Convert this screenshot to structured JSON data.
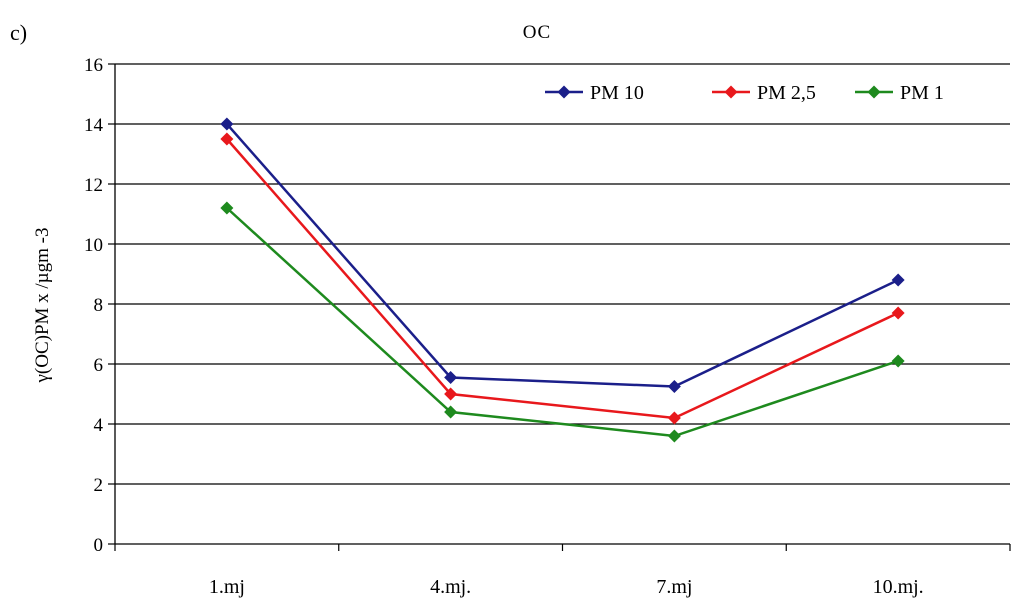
{
  "panel_label": "c)",
  "chart_data": {
    "type": "line",
    "title": "OC",
    "xlabel": "",
    "ylabel": "γ(OC)PM x /µgm -3",
    "categories": [
      "1.mj",
      "4.mj.",
      "7.mj",
      "10.mj."
    ],
    "ylim": [
      0,
      16
    ],
    "yticks": [
      0,
      2,
      4,
      6,
      8,
      10,
      12,
      14,
      16
    ],
    "grid": true,
    "legend_position": "top-right",
    "series": [
      {
        "name": "PM 10",
        "color": "#1b1f8a",
        "values": [
          14.0,
          5.55,
          5.25,
          8.8
        ]
      },
      {
        "name": "PM 2,5",
        "color": "#e8181c",
        "values": [
          13.5,
          5.0,
          4.2,
          7.7
        ]
      },
      {
        "name": "PM 1",
        "color": "#1e8a1e",
        "values": [
          11.2,
          4.4,
          3.6,
          6.1
        ]
      }
    ]
  }
}
